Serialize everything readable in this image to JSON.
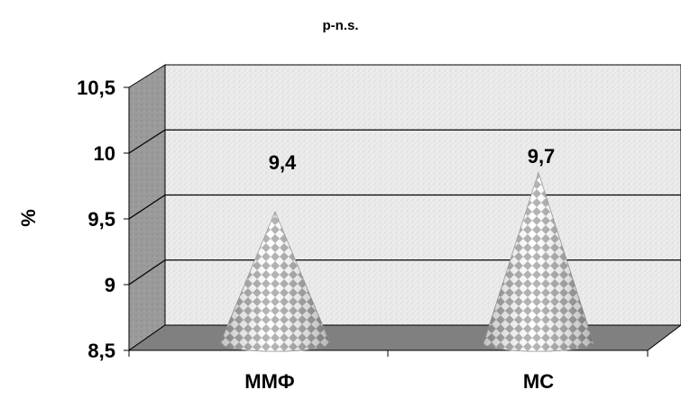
{
  "chart_data": {
    "type": "bar",
    "title": "p-n.s.",
    "xlabel": "",
    "ylabel": "%",
    "categories": [
      "ММФ",
      "МС"
    ],
    "values": [
      9.4,
      9.7
    ],
    "data_labels": [
      "9,4",
      "9,7"
    ],
    "ylim": [
      8.5,
      10.5
    ],
    "yticks": [
      8.5,
      9,
      9.5,
      10,
      10.5
    ],
    "ytick_labels": [
      "8,5",
      "9",
      "9,5",
      "10",
      "10,5"
    ],
    "grid": true,
    "legend": "none",
    "style": "3d-cone",
    "colors": {
      "back_wall": "#eeeeee",
      "side_wall": "#9a9a9a",
      "floor": "#808080",
      "cone_light": "#ffffff",
      "cone_dark": "#8c8c8c",
      "gridline": "#000000"
    }
  }
}
